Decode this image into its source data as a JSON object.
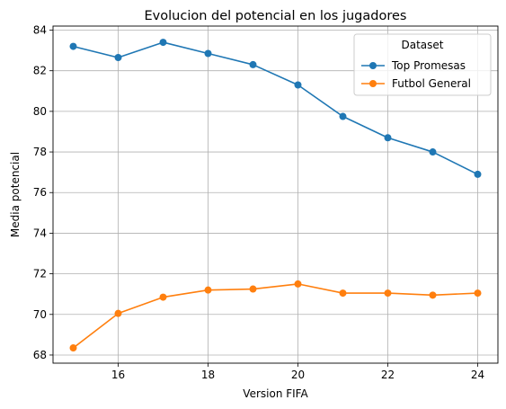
{
  "chart_data": {
    "type": "line",
    "title": "Evolucion del potencial en los jugadores",
    "xlabel": "Version FIFA",
    "ylabel": "Media potencial",
    "x": [
      15,
      16,
      17,
      18,
      19,
      20,
      21,
      22,
      23,
      24
    ],
    "xlim": [
      14.55,
      24.45
    ],
    "ylim": [
      67.6,
      84.2
    ],
    "xticks": [
      16,
      18,
      20,
      22,
      24
    ],
    "yticks": [
      68,
      70,
      72,
      74,
      76,
      78,
      80,
      82,
      84
    ],
    "grid": true,
    "legend": {
      "title": "Dataset",
      "placement": "top-right"
    },
    "series": [
      {
        "name": "Top Promesas",
        "color": "#1f77b4",
        "values": [
          83.2,
          82.65,
          83.4,
          82.85,
          82.3,
          81.3,
          79.75,
          78.7,
          78.0,
          76.9
        ]
      },
      {
        "name": "Futbol General",
        "color": "#ff7f0e",
        "values": [
          68.35,
          70.05,
          70.85,
          71.2,
          71.25,
          71.5,
          71.05,
          71.05,
          70.95,
          71.05
        ]
      }
    ]
  }
}
